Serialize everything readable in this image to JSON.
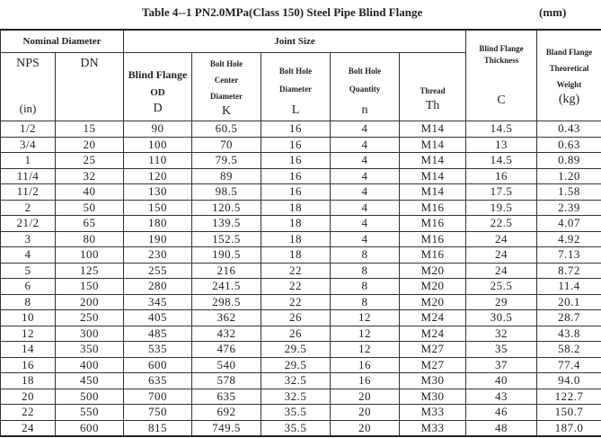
{
  "title": "Table 4--1   PN2.0MPa(Class 150) Steel Pipe Blind Flange",
  "unit": "(mm)",
  "headers": {
    "nominal": "Nominal Diameter",
    "joint": "Joint Size",
    "nps": "NPS",
    "nps_unit": "(in)",
    "dn": "DN",
    "od": "Blind Flange",
    "od2": "OD",
    "od_sym": "D",
    "k": "Bolt Hole Center Diameter",
    "k_sym": "K",
    "l": "Bolt Hole Diameter",
    "l_sym": "L",
    "n": "Bolt Hole Quantity",
    "n_sym": "n",
    "th": "Thread",
    "th_sym": "Th",
    "c": "Blind Flange Thickness",
    "c_sym": "C",
    "w": "Bland Flange Theoretical Weight",
    "w_unit": "(kg)"
  },
  "rows": [
    [
      "1/2",
      "15",
      "90",
      "60.5",
      "16",
      "4",
      "M14",
      "14.5",
      "0.43"
    ],
    [
      "3/4",
      "20",
      "100",
      "70",
      "16",
      "4",
      "M14",
      "13",
      "0.63"
    ],
    [
      "1",
      "25",
      "110",
      "79.5",
      "16",
      "4",
      "M14",
      "14.5",
      "0.89"
    ],
    [
      "11/4",
      "32",
      "120",
      "89",
      "16",
      "4",
      "M14",
      "16",
      "1.20"
    ],
    [
      "11/2",
      "40",
      "130",
      "98.5",
      "16",
      "4",
      "M14",
      "17.5",
      "1.58"
    ],
    [
      "2",
      "50",
      "150",
      "120.5",
      "18",
      "4",
      "M16",
      "19.5",
      "2.39"
    ],
    [
      "21/2",
      "65",
      "180",
      "139.5",
      "18",
      "4",
      "M16",
      "22.5",
      "4.07"
    ],
    [
      "3",
      "80",
      "190",
      "152.5",
      "18",
      "4",
      "M16",
      "24",
      "4.92"
    ],
    [
      "4",
      "100",
      "230",
      "190.5",
      "18",
      "8",
      "M16",
      "24",
      "7.13"
    ],
    [
      "5",
      "125",
      "255",
      "216",
      "22",
      "8",
      "M20",
      "24",
      "8.72"
    ],
    [
      "6",
      "150",
      "280",
      "241.5",
      "22",
      "8",
      "M20",
      "25.5",
      "11.4"
    ],
    [
      "8",
      "200",
      "345",
      "298.5",
      "22",
      "8",
      "M20",
      "29",
      "20.1"
    ],
    [
      "10",
      "250",
      "405",
      "362",
      "26",
      "12",
      "M24",
      "30.5",
      "28.7"
    ],
    [
      "12",
      "300",
      "485",
      "432",
      "26",
      "12",
      "M24",
      "32",
      "43.8"
    ],
    [
      "14",
      "350",
      "535",
      "476",
      "29.5",
      "12",
      "M27",
      "35",
      "58.2"
    ],
    [
      "16",
      "400",
      "600",
      "540",
      "29.5",
      "16",
      "M27",
      "37",
      "77.4"
    ],
    [
      "18",
      "450",
      "635",
      "578",
      "32.5",
      "16",
      "M30",
      "40",
      "94.0"
    ],
    [
      "20",
      "500",
      "700",
      "635",
      "32.5",
      "20",
      "M30",
      "43",
      "122.7"
    ],
    [
      "22",
      "550",
      "750",
      "692",
      "35.5",
      "20",
      "M33",
      "46",
      "150.7"
    ],
    [
      "24",
      "600",
      "815",
      "749.5",
      "35.5",
      "20",
      "M33",
      "48",
      "187.0"
    ]
  ]
}
